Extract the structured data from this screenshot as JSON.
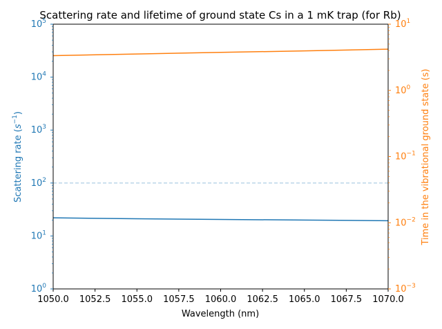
{
  "chart_data": {
    "type": "line",
    "title": "Scattering rate and lifetime of ground state Cs in a 1 mK trap (for Rb)",
    "xlabel": "Wavelength (nm)",
    "xlim": [
      1050,
      1070
    ],
    "x_ticks": [
      "1050.0",
      "1052.5",
      "1055.0",
      "1057.5",
      "1060.0",
      "1062.5",
      "1065.0",
      "1067.5",
      "1070.0"
    ],
    "x_tick_values": [
      1050,
      1052.5,
      1055,
      1057.5,
      1060,
      1062.5,
      1065,
      1067.5,
      1070
    ],
    "grid": false,
    "left_axis": {
      "label_text": "Scattering rate (",
      "label_math": "s",
      "label_sup": "−1",
      "label_close": ")",
      "scale": "log",
      "ylim": [
        1,
        100000
      ],
      "color": "#1f77b4",
      "tick_values": [
        1,
        10,
        100,
        1000,
        10000,
        100000
      ],
      "tick_bases": [
        "10",
        "10",
        "10",
        "10",
        "10",
        "10"
      ],
      "tick_exps": [
        "0",
        "1",
        "2",
        "3",
        "4",
        "5"
      ]
    },
    "right_axis": {
      "label": "Time in the vibrational ground state (s)",
      "scale": "log",
      "ylim": [
        0.001,
        10
      ],
      "color": "#ff7f0e",
      "tick_values": [
        0.001,
        0.01,
        0.1,
        1,
        10
      ],
      "tick_bases": [
        "10",
        "10",
        "10",
        "10",
        "10"
      ],
      "tick_exps": [
        "−3",
        "−2",
        "−1",
        "0",
        "1"
      ]
    },
    "series": [
      {
        "axis": "left",
        "color": "#1f77b4",
        "style": "solid",
        "x": [
          1050,
          1055,
          1060,
          1065,
          1070
        ],
        "values": [
          22.0,
          21.1,
          20.5,
          20.0,
          19.4
        ]
      },
      {
        "axis": "right",
        "color": "#ff7f0e",
        "style": "solid",
        "x": [
          1050,
          1055,
          1060,
          1065,
          1070
        ],
        "values": [
          3.35,
          3.55,
          3.75,
          3.95,
          4.2
        ]
      },
      {
        "axis": "left",
        "color": "#1f77b4",
        "style": "dashed",
        "alpha": 0.3,
        "x": [
          1050,
          1070
        ],
        "values": [
          100,
          100
        ]
      }
    ]
  }
}
